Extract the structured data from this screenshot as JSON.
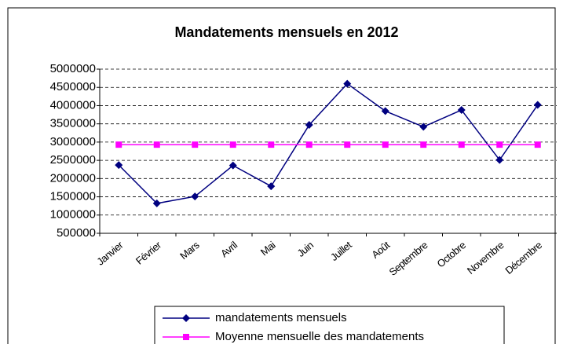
{
  "chart_data": {
    "type": "line",
    "title": "Mandatements mensuels en 2012",
    "categories": [
      "Janvier",
      "Février",
      "Mars",
      "Avril",
      "Mai",
      "Juin",
      "Juillet",
      "Août",
      "Septembre",
      "Octobre",
      "Novembre",
      "Décembre"
    ],
    "series": [
      {
        "name": "mandatements mensuels",
        "color": "#000080",
        "marker": "diamond",
        "values": [
          2370000,
          1320000,
          1510000,
          2360000,
          1790000,
          3470000,
          4600000,
          3850000,
          3420000,
          3880000,
          2510000,
          4020000
        ]
      },
      {
        "name": "Moyenne mensuelle des mandatements",
        "color": "#ff00ff",
        "marker": "square",
        "values": [
          2930000,
          2930000,
          2930000,
          2930000,
          2930000,
          2930000,
          2930000,
          2930000,
          2930000,
          2930000,
          2930000,
          2930000
        ]
      }
    ],
    "ylim": [
      500000,
      5000000
    ],
    "yticks": [
      500000,
      1000000,
      1500000,
      2000000,
      2500000,
      3000000,
      3500000,
      4000000,
      4500000,
      5000000
    ],
    "grid": true,
    "legend": "bottom"
  }
}
